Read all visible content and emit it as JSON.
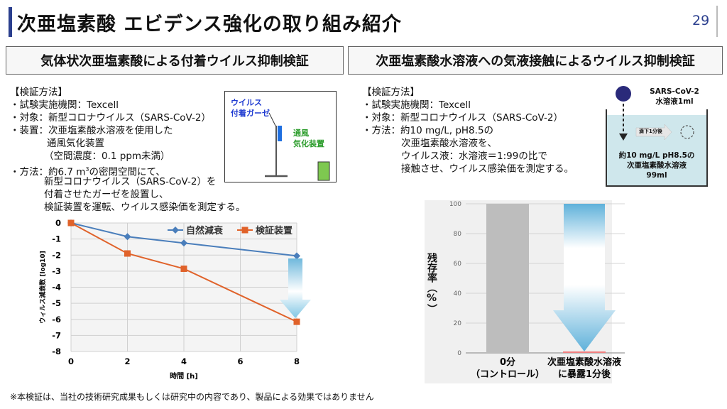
{
  "header": {
    "title": "次亜塩素酸 エビデンス強化の取り組み紹介",
    "page_number": "29"
  },
  "left": {
    "heading": "気体状次亜塩素酸による付着ウイルス抑制検証",
    "method_title": "【検証方法】",
    "lines": [
      "・試験実施機関：Texcell",
      "・対象：新型コロナウイルス（SARS-CoV-2）",
      "・装置：次亜塩素酸水溶液を使用した",
      "通風気化装置",
      "（空間濃度：0.1 ppm未満）",
      "新型コロナウイルス（SARS-CoV-2）を",
      "付着させたガーゼを設置し、",
      "検証装置を運転、ウイルス感染価を測定する。"
    ],
    "method_prefix": "・方法：約6.7 m",
    "method_sup": "3",
    "method_suffix": "の密閉空間にて、",
    "diagram": {
      "gauze_label_1": "ウイルス",
      "gauze_label_2": "付着ガーゼ",
      "device_label_1": "通風",
      "device_label_2": "気化装置"
    }
  },
  "right": {
    "heading": "次亜塩素酸水溶液への気液接触によるウイルス抑制検証",
    "method_title": "【検証方法】",
    "lines": [
      "・試験実施機関：Texcell",
      "・対象：新型コロナウイルス（SARS-CoV-2）",
      "・方法：約10 mg/L, pH8.5の",
      "次亜塩素酸水溶液を、",
      "ウイルス液：水溶液＝1:99の比で",
      "接触させ、ウイルス感染価を測定する。"
    ],
    "diagram": {
      "virus_label_1": "SARS-CoV-2",
      "virus_label_2": "水溶液1ml",
      "drop_label": "滴下1分後",
      "solution_1": "約10 mg/L pH8.5の",
      "solution_2": "次亜塩素酸水溶液",
      "solution_3": "99ml"
    }
  },
  "footnote": "※本検証は、当社の技術研究成果もしくは研究中の内容であり、製品による効果ではありません",
  "chart_data": [
    {
      "type": "line",
      "xlabel": "時間 [h]",
      "ylabel": "ウィルス減衰数 [log10]",
      "x": [
        0,
        2,
        4,
        8
      ],
      "xticks": [
        "0",
        "2",
        "4",
        "6",
        "8"
      ],
      "xlim": [
        0,
        8
      ],
      "ylim": [
        -8,
        0
      ],
      "yticks": [
        "0",
        "-1",
        "-2",
        "-3",
        "-4",
        "-5",
        "-6",
        "-7",
        "-8"
      ],
      "grid": true,
      "legend": "top-right",
      "series": [
        {
          "name": "自然減衰",
          "values": [
            0,
            -0.85,
            -1.25,
            -2.05
          ],
          "color": "#4a7ebb",
          "marker": "diamond"
        },
        {
          "name": "検証装置",
          "values": [
            0,
            -1.9,
            -2.85,
            -6.15
          ],
          "color": "#e0622a",
          "marker": "square"
        }
      ]
    },
    {
      "type": "bar",
      "ylabel": "残存率（%）",
      "ylim": [
        0,
        100
      ],
      "yticks": [
        "0",
        "20",
        "40",
        "60",
        "80",
        "100"
      ],
      "categories": [
        "0分\n（コントロール）",
        "次亜塩素酸水溶液\nに暴露1分後"
      ],
      "category_lines": [
        [
          "0分",
          "（コントロール）"
        ],
        [
          "次亜塩素酸水溶液",
          "に暴露1分後"
        ]
      ],
      "values": [
        100,
        1
      ],
      "colors": [
        "#bdbdbd",
        "#f08080"
      ],
      "grid": true
    }
  ]
}
